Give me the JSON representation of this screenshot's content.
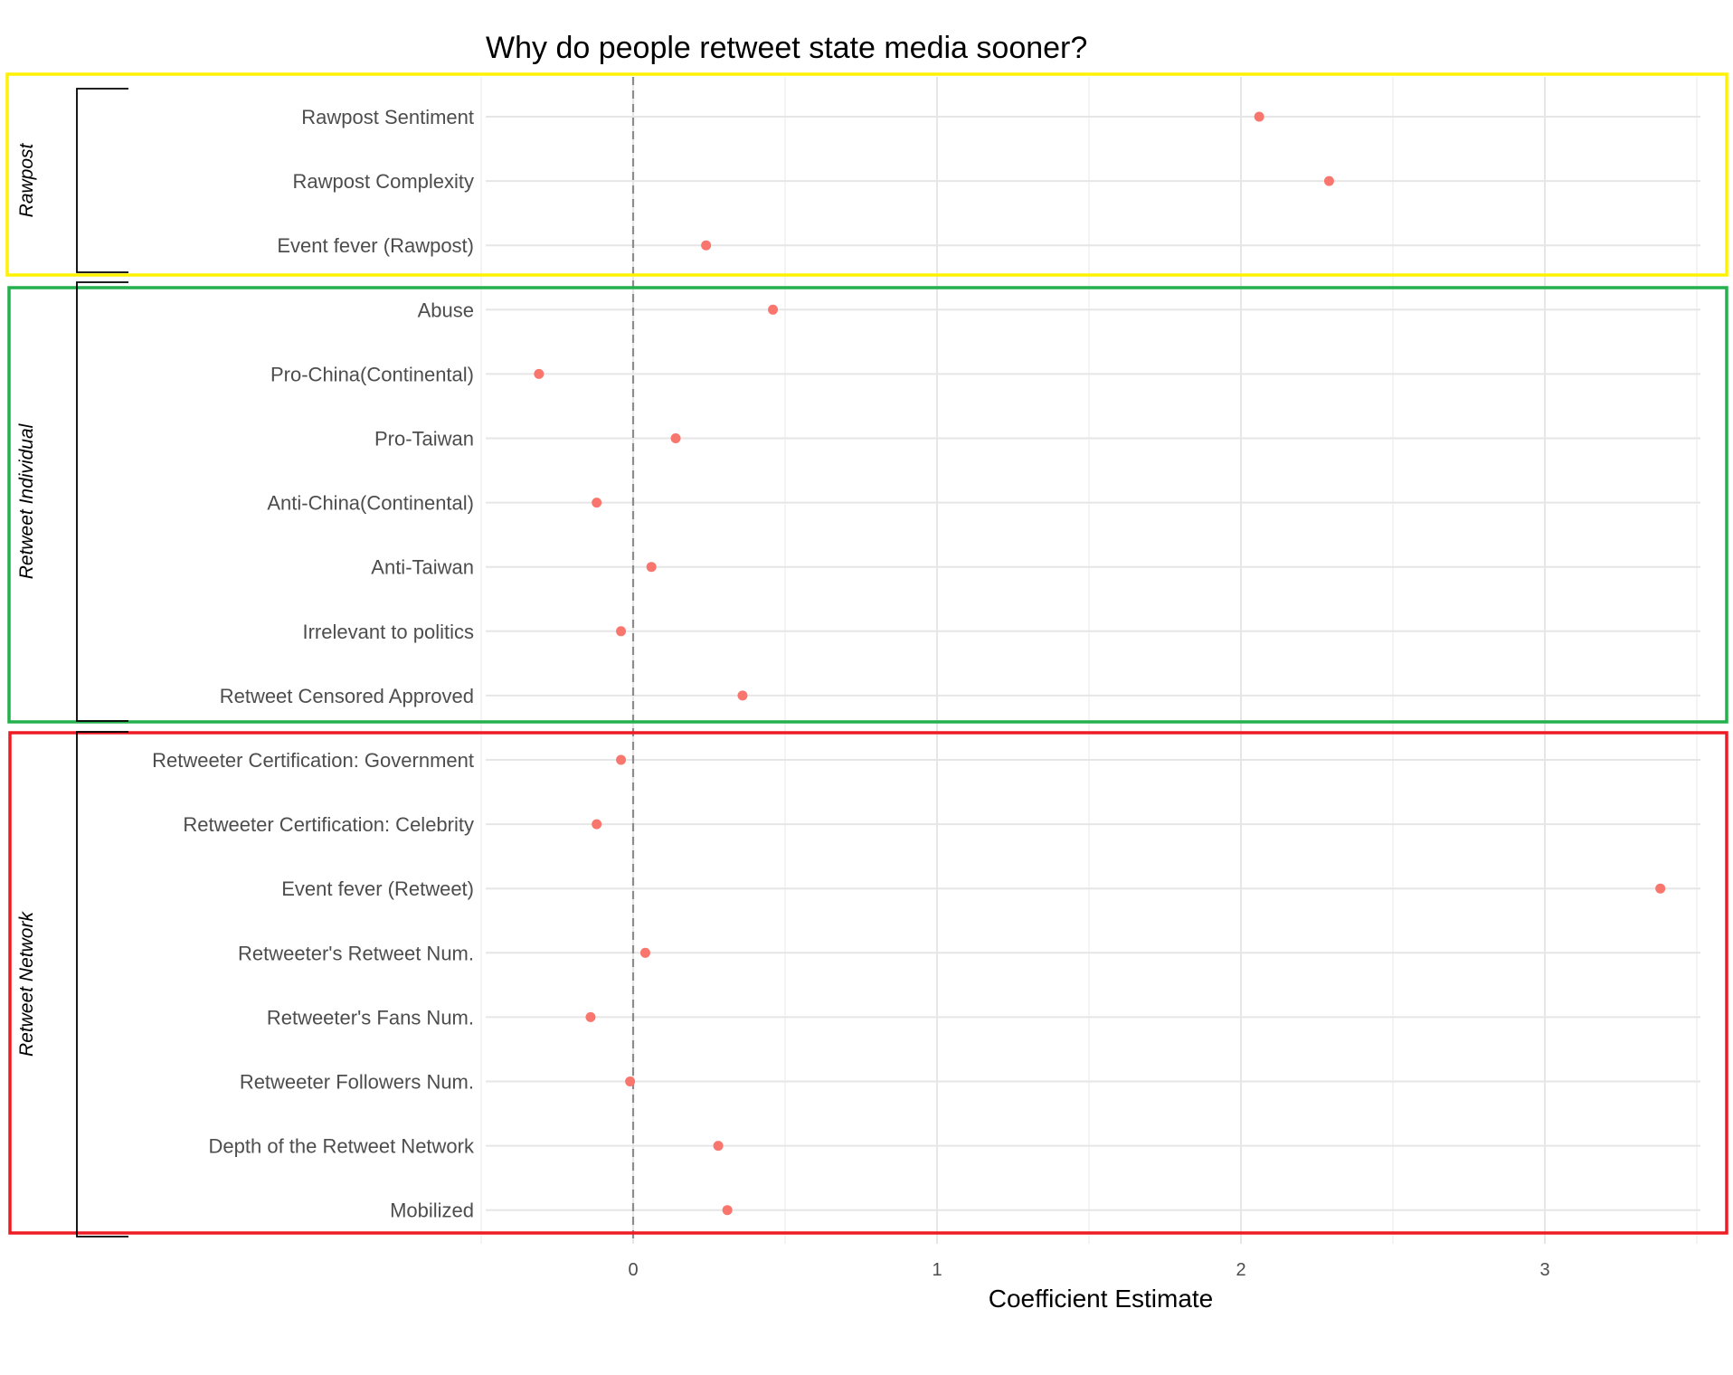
{
  "chart_data": {
    "type": "scatter",
    "title": "Why do people retweet state media sooner?",
    "xlabel": "Coefficient Estimate",
    "ylabel": "",
    "xlim": [
      -0.5,
      3.6
    ],
    "x_ticks": [
      0,
      1,
      2,
      3
    ],
    "reference_line_x": 0,
    "grid": true,
    "point_color": "#F8766D",
    "groups": [
      {
        "name": "Rawpost",
        "box_color": "#FFF200",
        "items": [
          {
            "label": "Rawpost Sentiment",
            "x": 2.06
          },
          {
            "label": "Rawpost Complexity",
            "x": 2.29
          },
          {
            "label": "Event fever (Rawpost)",
            "x": 0.24
          }
        ]
      },
      {
        "name": "Retweet Individual",
        "box_color": "#22B14C",
        "items": [
          {
            "label": "Abuse",
            "x": 0.46
          },
          {
            "label": "Pro-China(Continental)",
            "x": -0.31
          },
          {
            "label": "Pro-Taiwan",
            "x": 0.14
          },
          {
            "label": "Anti-China(Continental)",
            "x": -0.12
          },
          {
            "label": "Anti-Taiwan",
            "x": 0.06
          },
          {
            "label": "Irrelevant to politics",
            "x": -0.04
          },
          {
            "label": "Retweet Censored Approved",
            "x": 0.36
          }
        ]
      },
      {
        "name": "Retweet Network",
        "box_color": "#ED1C24",
        "items": [
          {
            "label": "Retweeter Certification: Government",
            "x": -0.04
          },
          {
            "label": "Retweeter Certification: Celebrity",
            "x": -0.12
          },
          {
            "label": "Event fever (Retweet)",
            "x": 3.38
          },
          {
            "label": "Retweeter's Retweet Num.",
            "x": 0.04
          },
          {
            "label": "Retweeter's Fans Num.",
            "x": -0.14
          },
          {
            "label": "Retweeter Followers Num.",
            "x": -0.01
          },
          {
            "label": "Depth of the Retweet Network",
            "x": 0.28
          },
          {
            "label": "Mobilized",
            "x": 0.31
          }
        ]
      }
    ]
  }
}
